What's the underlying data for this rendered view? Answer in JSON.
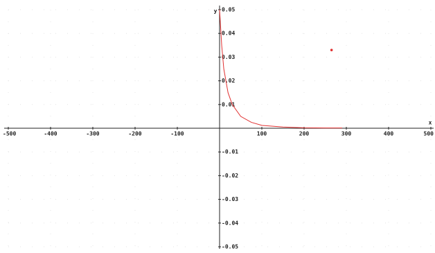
{
  "chart_data": {
    "type": "line",
    "xlabel": "x",
    "ylabel": "y",
    "xlim": [
      -500,
      500
    ],
    "ylim": [
      -0.05,
      0.05
    ],
    "xticks": [
      -500,
      -400,
      -300,
      -200,
      -100,
      100,
      200,
      300,
      400,
      500
    ],
    "yticks": [
      0.05,
      0.04,
      0.03,
      0.02,
      0.01,
      -0.01,
      -0.02,
      -0.03,
      -0.04,
      -0.05
    ],
    "grid": true,
    "series": [
      {
        "type": "line",
        "color": "#e03030",
        "x": [
          0,
          5,
          10,
          20,
          30,
          50,
          75,
          100,
          150,
          200,
          250,
          290
        ],
        "values": [
          0.05,
          0.035,
          0.025,
          0.015,
          0.01,
          0.005,
          0.0025,
          0.0012,
          0.0005,
          0.0002,
          0.0001,
          0.0001
        ]
      },
      {
        "type": "scatter",
        "color": "#e03030",
        "x": [
          265
        ],
        "values": [
          0.033
        ]
      }
    ]
  }
}
